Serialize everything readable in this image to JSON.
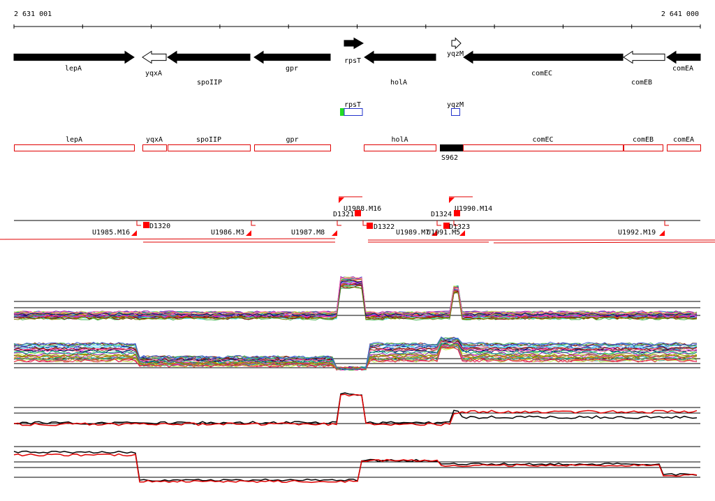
{
  "coords": {
    "start": "2 631 001",
    "end": "2 641 000"
  },
  "genes": [
    {
      "label": "lepA",
      "dir": "right",
      "fill": "black"
    },
    {
      "label": "yqxA",
      "dir": "left",
      "fill": "white"
    },
    {
      "label": "spoIIP",
      "dir": "left",
      "fill": "black"
    },
    {
      "label": "gpr",
      "dir": "left",
      "fill": "black"
    },
    {
      "label": "rpsT",
      "dir": "right",
      "fill": "black"
    },
    {
      "label": "holA",
      "dir": "left",
      "fill": "black"
    },
    {
      "label": "yqzM",
      "dir": "right",
      "fill": "white"
    },
    {
      "label": "comEC",
      "dir": "left",
      "fill": "black"
    },
    {
      "label": "comEB",
      "dir": "left",
      "fill": "white"
    },
    {
      "label": "comEA",
      "dir": "left",
      "fill": "black"
    }
  ],
  "small_features": [
    {
      "label": "rpsT"
    },
    {
      "label": "yqzM"
    }
  ],
  "annotation_boxes": [
    {
      "label": "lepA"
    },
    {
      "label": "yqxA"
    },
    {
      "label": "spoIIP"
    },
    {
      "label": "gpr"
    },
    {
      "label": "holA"
    },
    {
      "label": "comEC"
    },
    {
      "label": "comEB"
    },
    {
      "label": "comEA"
    }
  ],
  "s_feature": {
    "label": "S962"
  },
  "u_segments": [
    {
      "label": "U1985.M16"
    },
    {
      "label": "U1986.M3"
    },
    {
      "label": "U1987.M8"
    },
    {
      "label": "U1988.M16"
    },
    {
      "label": "U1989.M7"
    },
    {
      "label": "U1990.M14"
    },
    {
      "label": "U1991.M5"
    },
    {
      "label": "U1992.M19"
    }
  ],
  "d_markers": [
    {
      "label": "D1320"
    },
    {
      "label": "D1321"
    },
    {
      "label": "D1322"
    },
    {
      "label": "D1324"
    },
    {
      "label": "D1323"
    }
  ],
  "colors": {
    "gene": "#000000",
    "box": "#e00000",
    "feature_green": "#22dd22",
    "feature_blue": "#2233cc",
    "marker": "#ff0000"
  }
}
